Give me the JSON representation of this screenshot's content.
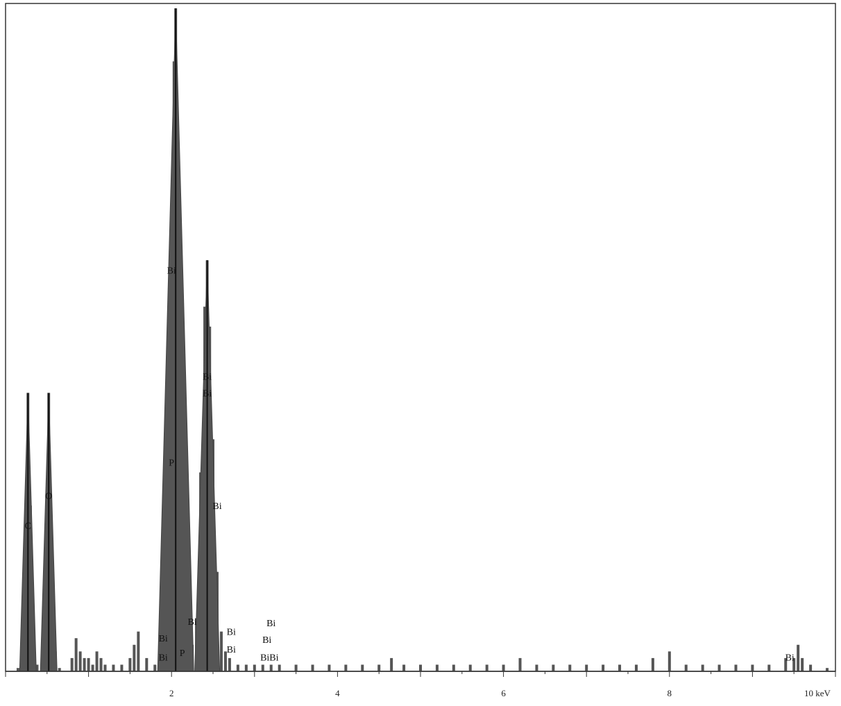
{
  "chart_data": {
    "type": "bar",
    "title": "",
    "xlabel": "",
    "ylabel": "",
    "xlim": [
      0,
      10
    ],
    "ylim": [
      0,
      100
    ],
    "x_unit": "keV",
    "grid": false,
    "ticks": [
      {
        "value": 2,
        "label": "2"
      },
      {
        "value": 4,
        "label": "4"
      },
      {
        "value": 6,
        "label": "6"
      },
      {
        "value": 8,
        "label": "8"
      },
      {
        "value": 10,
        "label": "10 keV"
      }
    ],
    "peaks": [
      {
        "x": 0.27,
        "y": 42
      },
      {
        "x": 0.52,
        "y": 42
      },
      {
        "x": 2.05,
        "y": 100
      },
      {
        "x": 2.43,
        "y": 62
      }
    ],
    "series": [
      {
        "color": "#555555",
        "x": [
          0.15,
          0.2,
          0.24,
          0.27,
          0.3,
          0.34,
          0.38,
          0.45,
          0.5,
          0.52,
          0.55,
          0.6,
          0.65,
          0.8,
          0.85,
          0.9,
          0.95,
          1.0,
          1.05,
          1.1,
          1.15,
          1.2,
          1.3,
          1.4,
          1.5,
          1.55,
          1.6,
          1.7,
          1.8,
          1.9,
          1.95,
          2.0,
          2.03,
          2.05,
          2.08,
          2.12,
          2.16,
          2.2,
          2.25,
          2.3,
          2.35,
          2.4,
          2.43,
          2.46,
          2.5,
          2.55,
          2.6,
          2.65,
          2.7,
          2.8,
          2.9,
          3.0,
          3.1,
          3.2,
          3.3,
          3.5,
          3.7,
          3.9,
          4.1,
          4.3,
          4.5,
          4.65,
          4.8,
          5.0,
          5.2,
          5.4,
          5.6,
          5.8,
          6.0,
          6.2,
          6.4,
          6.6,
          6.8,
          7.0,
          7.2,
          7.4,
          7.6,
          7.8,
          8.0,
          8.2,
          8.4,
          8.6,
          8.8,
          9.0,
          9.2,
          9.4,
          9.5,
          9.55,
          9.6,
          9.7,
          9.9
        ],
        "y": [
          0.5,
          3,
          20,
          42,
          25,
          6,
          1,
          4,
          26,
          42,
          18,
          3,
          0.5,
          2,
          5,
          3,
          2,
          2,
          1,
          3,
          2,
          1,
          1,
          1,
          2,
          4,
          6,
          2,
          1,
          4,
          20,
          60,
          92,
          100,
          70,
          40,
          18,
          9,
          4,
          8,
          30,
          55,
          62,
          52,
          35,
          15,
          6,
          3,
          2,
          1,
          1,
          1,
          1,
          1,
          1,
          1,
          1,
          1,
          1,
          1,
          1,
          2,
          1,
          1,
          1,
          1,
          1,
          1,
          1,
          2,
          1,
          1,
          1,
          1,
          1,
          1,
          1,
          2,
          3,
          1,
          1,
          1,
          1,
          1,
          1,
          2,
          2,
          4,
          2,
          1,
          0.5
        ]
      }
    ],
    "labels": [
      {
        "text": "C",
        "x": 0.27,
        "y": 21.5
      },
      {
        "text": "O",
        "x": 0.52,
        "y": 26
      },
      {
        "text": "Bi",
        "x": 2.0,
        "y": 60
      },
      {
        "text": "P",
        "x": 2.0,
        "y": 31
      },
      {
        "text": "Bi",
        "x": 2.43,
        "y": 44
      },
      {
        "text": "Bi",
        "x": 2.43,
        "y": 41.5
      },
      {
        "text": "Bi",
        "x": 2.55,
        "y": 24.5
      },
      {
        "text": "Bi",
        "x": 2.25,
        "y": 7
      },
      {
        "text": "Bi",
        "x": 1.9,
        "y": 4.5
      },
      {
        "text": "Bi",
        "x": 1.9,
        "y": 1.6
      },
      {
        "text": "P",
        "x": 2.13,
        "y": 2.3
      },
      {
        "text": "Bi",
        "x": 2.72,
        "y": 5.5
      },
      {
        "text": "Bi",
        "x": 2.72,
        "y": 2.8
      },
      {
        "text": "Bi",
        "x": 3.2,
        "y": 6.8
      },
      {
        "text": "Bi",
        "x": 3.15,
        "y": 4.3
      },
      {
        "text": "BiBi",
        "x": 3.18,
        "y": 1.6
      },
      {
        "text": "Bi",
        "x": 9.45,
        "y": 1.6
      }
    ]
  }
}
